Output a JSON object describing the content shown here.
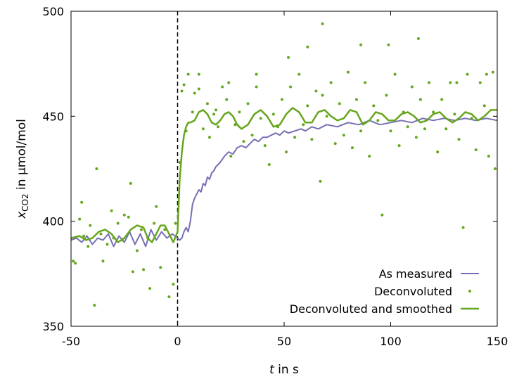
{
  "chart_data": {
    "type": "line",
    "xlabel_var": "t",
    "xlabel_rest": " in s",
    "ylabel_var": "x",
    "ylabel_sub": "CO2",
    "ylabel_rest": " in µmol/mol",
    "xlim": [
      -50,
      150
    ],
    "ylim": [
      350,
      500
    ],
    "xticks": [
      -50,
      0,
      50,
      100,
      150
    ],
    "yticks": [
      350,
      400,
      450,
      500
    ],
    "grid": false,
    "legend_position": "bottom-right",
    "vline_x": 0,
    "series": [
      {
        "name": "As measured",
        "style": "line",
        "color": "#7570b3",
        "points": [
          [
            -50,
            391
          ],
          [
            -47.5,
            392
          ],
          [
            -45,
            390
          ],
          [
            -42.5,
            393
          ],
          [
            -40,
            389
          ],
          [
            -37.5,
            392
          ],
          [
            -35,
            391
          ],
          [
            -32.5,
            394
          ],
          [
            -30,
            388
          ],
          [
            -27.5,
            393
          ],
          [
            -25,
            390
          ],
          [
            -22.5,
            395
          ],
          [
            -20,
            389
          ],
          [
            -17.5,
            394
          ],
          [
            -15,
            388
          ],
          [
            -12.5,
            396
          ],
          [
            -10,
            391
          ],
          [
            -7.5,
            395
          ],
          [
            -5,
            392
          ],
          [
            -2.5,
            394
          ],
          [
            0,
            392
          ],
          [
            1,
            391
          ],
          [
            2,
            392
          ],
          [
            3,
            395
          ],
          [
            4,
            397
          ],
          [
            5,
            395
          ],
          [
            6,
            400
          ],
          [
            7,
            408
          ],
          [
            8,
            411
          ],
          [
            9,
            413
          ],
          [
            10,
            415
          ],
          [
            11,
            414
          ],
          [
            12,
            418
          ],
          [
            13,
            417
          ],
          [
            14,
            421
          ],
          [
            15,
            420
          ],
          [
            16,
            423
          ],
          [
            17,
            424
          ],
          [
            18,
            426
          ],
          [
            20,
            428
          ],
          [
            22,
            431
          ],
          [
            24,
            433
          ],
          [
            26,
            432
          ],
          [
            28,
            435
          ],
          [
            30,
            436
          ],
          [
            32,
            435
          ],
          [
            34,
            437
          ],
          [
            36,
            439
          ],
          [
            38,
            438
          ],
          [
            40,
            440
          ],
          [
            42,
            440
          ],
          [
            44,
            441
          ],
          [
            46,
            442
          ],
          [
            48,
            441
          ],
          [
            50,
            443
          ],
          [
            52,
            442
          ],
          [
            55,
            443
          ],
          [
            58,
            444
          ],
          [
            60,
            443
          ],
          [
            63,
            445
          ],
          [
            66,
            444
          ],
          [
            70,
            446
          ],
          [
            75,
            445
          ],
          [
            80,
            447
          ],
          [
            85,
            446
          ],
          [
            90,
            448
          ],
          [
            95,
            446
          ],
          [
            100,
            447
          ],
          [
            105,
            448
          ],
          [
            110,
            447
          ],
          [
            115,
            449
          ],
          [
            120,
            448
          ],
          [
            125,
            449
          ],
          [
            130,
            448
          ],
          [
            135,
            449
          ],
          [
            140,
            448
          ],
          [
            145,
            449
          ],
          [
            150,
            448
          ]
        ]
      },
      {
        "name": "Deconvoluted",
        "style": "points",
        "color": "#66a61e",
        "points": [
          [
            -49,
            381
          ],
          [
            -48,
            380
          ],
          [
            -46,
            401
          ],
          [
            -45,
            409
          ],
          [
            -44,
            393
          ],
          [
            -42,
            388
          ],
          [
            -41,
            398
          ],
          [
            -39,
            360
          ],
          [
            -38,
            425
          ],
          [
            -36,
            394
          ],
          [
            -35,
            381
          ],
          [
            -33,
            389
          ],
          [
            -31,
            405
          ],
          [
            -30,
            392
          ],
          [
            -28,
            399
          ],
          [
            -26,
            391
          ],
          [
            -25,
            403
          ],
          [
            -23,
            402
          ],
          [
            -22,
            418
          ],
          [
            -21,
            376
          ],
          [
            -19,
            386
          ],
          [
            -17,
            396
          ],
          [
            -16,
            377
          ],
          [
            -14,
            392
          ],
          [
            -13,
            368
          ],
          [
            -11,
            399
          ],
          [
            -10,
            407
          ],
          [
            -8,
            378
          ],
          [
            -6,
            396
          ],
          [
            -4,
            364
          ],
          [
            -2,
            370
          ],
          [
            -1,
            399
          ],
          [
            1,
            428
          ],
          [
            2,
            462
          ],
          [
            4,
            443
          ],
          [
            5,
            470
          ],
          [
            7,
            452
          ],
          [
            8,
            461
          ],
          [
            10,
            463
          ],
          [
            12,
            444
          ],
          [
            14,
            456
          ],
          [
            15,
            440
          ],
          [
            17,
            451
          ],
          [
            19,
            445
          ],
          [
            21,
            464
          ],
          [
            23,
            458
          ],
          [
            25,
            431
          ],
          [
            27,
            446
          ],
          [
            29,
            452
          ],
          [
            31,
            438
          ],
          [
            33,
            456
          ],
          [
            35,
            441
          ],
          [
            37,
            470
          ],
          [
            39,
            449
          ],
          [
            41,
            436
          ],
          [
            43,
            427
          ],
          [
            45,
            451
          ],
          [
            47,
            445
          ],
          [
            49,
            458
          ],
          [
            51,
            433
          ],
          [
            53,
            464
          ],
          [
            55,
            440
          ],
          [
            57,
            470
          ],
          [
            59,
            446
          ],
          [
            61,
            455
          ],
          [
            63,
            439
          ],
          [
            65,
            462
          ],
          [
            67,
            419
          ],
          [
            68,
            460
          ],
          [
            70,
            450
          ],
          [
            72,
            466
          ],
          [
            74,
            437
          ],
          [
            76,
            456
          ],
          [
            78,
            441
          ],
          [
            80,
            471
          ],
          [
            82,
            435
          ],
          [
            84,
            458
          ],
          [
            86,
            443
          ],
          [
            88,
            466
          ],
          [
            90,
            431
          ],
          [
            92,
            455
          ],
          [
            94,
            448
          ],
          [
            96,
            403
          ],
          [
            98,
            460
          ],
          [
            100,
            443
          ],
          [
            102,
            470
          ],
          [
            104,
            436
          ],
          [
            106,
            452
          ],
          [
            108,
            445
          ],
          [
            110,
            464
          ],
          [
            112,
            440
          ],
          [
            114,
            458
          ],
          [
            116,
            444
          ],
          [
            118,
            466
          ],
          [
            120,
            452
          ],
          [
            122,
            433
          ],
          [
            124,
            458
          ],
          [
            126,
            444
          ],
          [
            128,
            466
          ],
          [
            130,
            451
          ],
          [
            132,
            439
          ],
          [
            134,
            397
          ],
          [
            136,
            470
          ],
          [
            138,
            449
          ],
          [
            140,
            434
          ],
          [
            142,
            466
          ],
          [
            144,
            455
          ],
          [
            146,
            431
          ],
          [
            148,
            471
          ],
          [
            149,
            425
          ],
          [
            61,
            483
          ],
          [
            68,
            494
          ],
          [
            86,
            484
          ],
          [
            99,
            484
          ],
          [
            113,
            487
          ],
          [
            131,
            466
          ],
          [
            145,
            470
          ],
          [
            52,
            478
          ],
          [
            37,
            464
          ],
          [
            3,
            465
          ],
          [
            10,
            470
          ],
          [
            18,
            453
          ],
          [
            24,
            466
          ]
        ]
      },
      {
        "name": "Deconvoluted and smoothed",
        "style": "line",
        "color": "#66a61e",
        "points": [
          [
            -50,
            392
          ],
          [
            -46,
            393
          ],
          [
            -43,
            391
          ],
          [
            -40,
            392
          ],
          [
            -37,
            395
          ],
          [
            -34,
            396
          ],
          [
            -31,
            394
          ],
          [
            -28,
            390
          ],
          [
            -25,
            392
          ],
          [
            -22,
            396
          ],
          [
            -19,
            398
          ],
          [
            -16,
            397
          ],
          [
            -14,
            392
          ],
          [
            -12,
            390
          ],
          [
            -10,
            394
          ],
          [
            -8,
            398
          ],
          [
            -6,
            398
          ],
          [
            -4,
            394
          ],
          [
            -2,
            390
          ],
          [
            0,
            395
          ],
          [
            1,
            420
          ],
          [
            2,
            433
          ],
          [
            3,
            441
          ],
          [
            4,
            445
          ],
          [
            5,
            447
          ],
          [
            6,
            447
          ],
          [
            8,
            448
          ],
          [
            10,
            452
          ],
          [
            12,
            453
          ],
          [
            14,
            451
          ],
          [
            16,
            447
          ],
          [
            18,
            446
          ],
          [
            20,
            448
          ],
          [
            22,
            451
          ],
          [
            24,
            452
          ],
          [
            26,
            450
          ],
          [
            28,
            446
          ],
          [
            30,
            444
          ],
          [
            33,
            446
          ],
          [
            36,
            451
          ],
          [
            39,
            453
          ],
          [
            42,
            450
          ],
          [
            45,
            445
          ],
          [
            48,
            446
          ],
          [
            51,
            451
          ],
          [
            54,
            454
          ],
          [
            57,
            452
          ],
          [
            60,
            447
          ],
          [
            63,
            447
          ],
          [
            66,
            452
          ],
          [
            69,
            453
          ],
          [
            72,
            450
          ],
          [
            75,
            448
          ],
          [
            78,
            449
          ],
          [
            81,
            453
          ],
          [
            84,
            452
          ],
          [
            87,
            446
          ],
          [
            90,
            448
          ],
          [
            93,
            452
          ],
          [
            96,
            451
          ],
          [
            99,
            448
          ],
          [
            102,
            448
          ],
          [
            105,
            451
          ],
          [
            108,
            452
          ],
          [
            111,
            450
          ],
          [
            114,
            447
          ],
          [
            117,
            448
          ],
          [
            120,
            451
          ],
          [
            123,
            452
          ],
          [
            126,
            449
          ],
          [
            129,
            447
          ],
          [
            132,
            449
          ],
          [
            135,
            452
          ],
          [
            138,
            451
          ],
          [
            141,
            448
          ],
          [
            144,
            450
          ],
          [
            147,
            453
          ],
          [
            150,
            453
          ]
        ]
      }
    ]
  }
}
